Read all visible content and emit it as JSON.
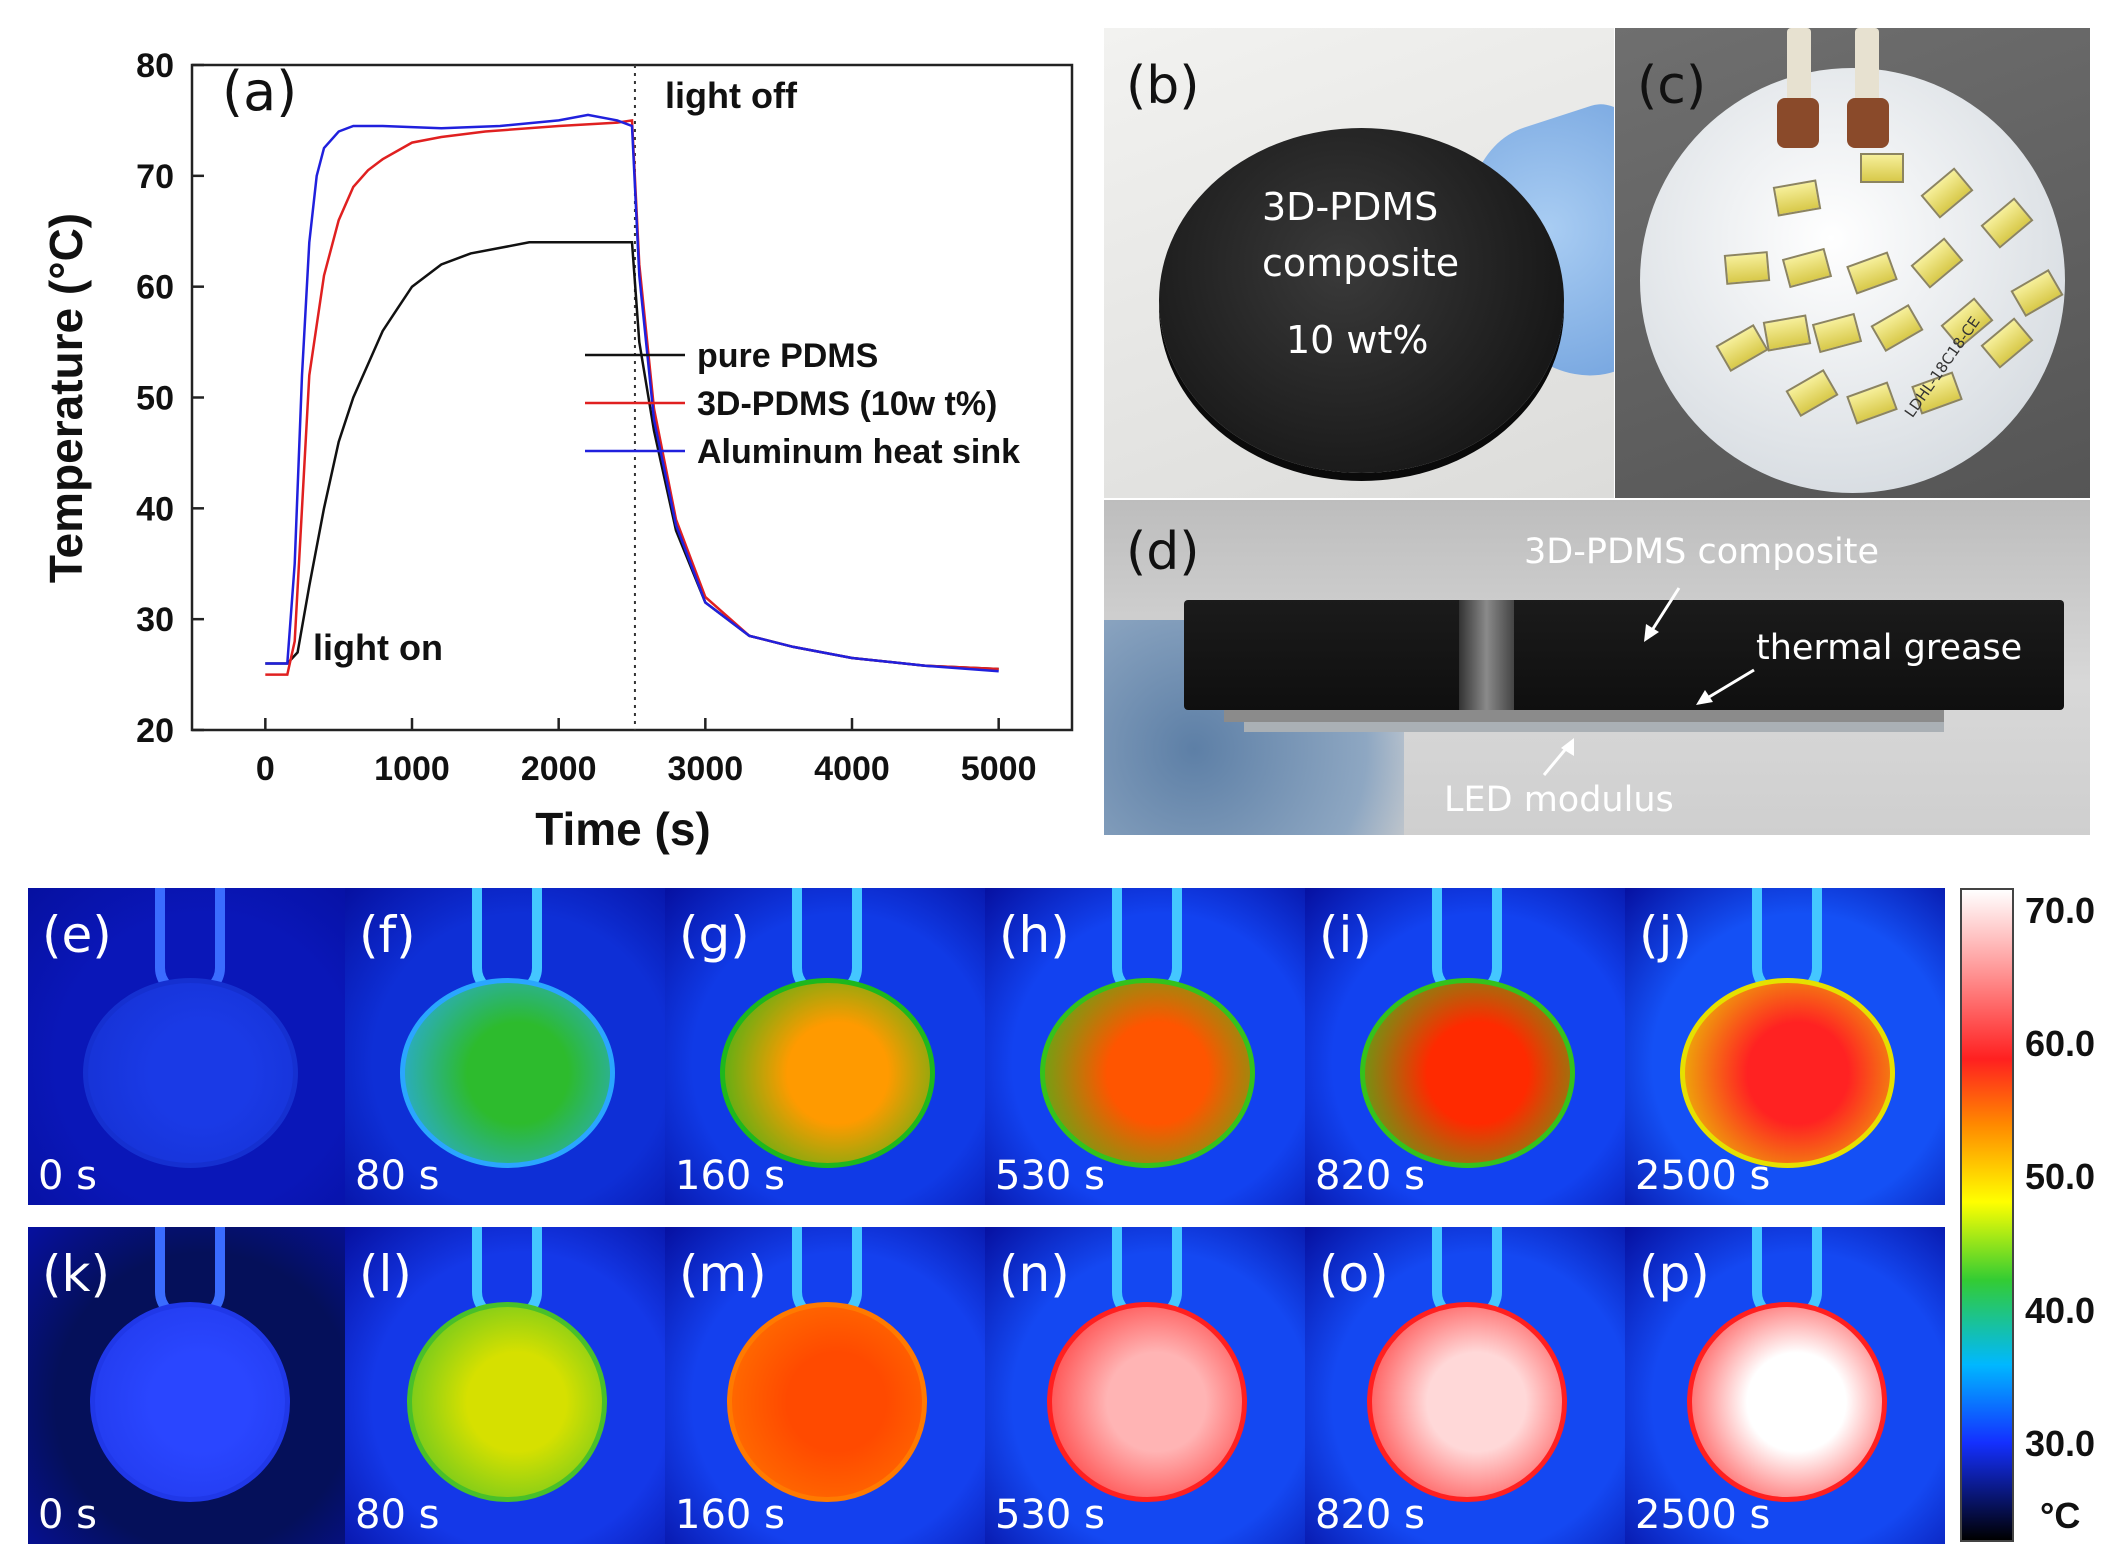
{
  "chart_data": {
    "type": "line",
    "label": "(a)",
    "xlabel": "Time (s)",
    "ylabel": "Temperature (°C)",
    "xlim": [
      -500,
      5500
    ],
    "ylim": [
      20,
      80
    ],
    "xticks": [
      0,
      1000,
      2000,
      3000,
      4000,
      5000
    ],
    "yticks": [
      20,
      30,
      40,
      50,
      60,
      70,
      80
    ],
    "annotations": {
      "light_on": "light on",
      "light_off": "light off",
      "light_off_x": 2520
    },
    "legend_position": "center-right",
    "series": [
      {
        "name": "pure PDMS",
        "color": "#111111",
        "x": [
          0,
          150,
          220,
          300,
          400,
          500,
          600,
          700,
          800,
          900,
          1000,
          1200,
          1400,
          1600,
          1800,
          2000,
          2200,
          2400,
          2500,
          2550,
          2650,
          2800,
          3000,
          3300,
          3600,
          4000,
          4500,
          5000
        ],
        "y": [
          26,
          26,
          27,
          33,
          40,
          46,
          50,
          53,
          56,
          58,
          60,
          62,
          63,
          63.5,
          64,
          64,
          64,
          64,
          64,
          55,
          47,
          38,
          31.5,
          28.5,
          27.5,
          26.5,
          25.8,
          25.5
        ]
      },
      {
        "name": "3D-PDMS (10w t%)",
        "color": "#e02020",
        "x": [
          0,
          150,
          200,
          250,
          300,
          400,
          500,
          600,
          700,
          800,
          1000,
          1200,
          1500,
          2000,
          2400,
          2500,
          2550,
          2650,
          2800,
          3000,
          3300,
          3600,
          4000,
          4500,
          5000
        ],
        "y": [
          25,
          25,
          28,
          40,
          52,
          61,
          66,
          69,
          70.5,
          71.5,
          73,
          73.5,
          74,
          74.5,
          74.8,
          75,
          62,
          49,
          39,
          32,
          28.5,
          27.5,
          26.5,
          25.8,
          25.5
        ]
      },
      {
        "name": "Aluminum heat sink",
        "color": "#2020dd",
        "x": [
          0,
          150,
          200,
          250,
          300,
          350,
          400,
          500,
          600,
          800,
          1200,
          1600,
          2000,
          2200,
          2400,
          2500,
          2550,
          2650,
          2800,
          3000,
          3300,
          3600,
          4000,
          4500,
          5000
        ],
        "y": [
          26,
          26,
          35,
          52,
          64,
          70,
          72.5,
          74,
          74.5,
          74.5,
          74.3,
          74.5,
          75,
          75.5,
          75,
          74.5,
          61,
          48,
          38.5,
          31.5,
          28.5,
          27.5,
          26.5,
          25.8,
          25.3
        ]
      }
    ]
  },
  "panels": {
    "b": {
      "label": "(b)",
      "line1": "3D-PDMS",
      "line2": "composite",
      "line3": "10 wt%"
    },
    "c": {
      "label": "(c)",
      "board_code": "LDHL-18C18-CE"
    },
    "d": {
      "label": "(d)",
      "composite": "3D-PDMS composite",
      "grease": "thermal grease",
      "led": "LED modulus"
    }
  },
  "ir_rows": [
    [
      {
        "label": "(e)",
        "time": "0 s",
        "peak": "#1a3ae6",
        "edge": "#1530d0",
        "bg": "#0a17b8"
      },
      {
        "label": "(f)",
        "time": "80 s",
        "peak": "#2dbb2d",
        "edge": "#2aa6ff",
        "bg": "#0e2fd6"
      },
      {
        "label": "(g)",
        "time": "160 s",
        "peak": "#ff9a00",
        "edge": "#1db81d",
        "bg": "#103ae6"
      },
      {
        "label": "(h)",
        "time": "530 s",
        "peak": "#ff5500",
        "edge": "#34c21c",
        "bg": "#1242f0"
      },
      {
        "label": "(i)",
        "time": "820 s",
        "peak": "#ff2a00",
        "edge": "#34c21c",
        "bg": "#1242f0"
      },
      {
        "label": "(j)",
        "time": "2500 s",
        "peak": "#ff2222",
        "edge": "#e6e000",
        "bg": "#1450f5"
      }
    ],
    [
      {
        "label": "(k)",
        "time": "0 s",
        "peak": "#2a46ff",
        "edge": "#2038e8",
        "bg": "#05105a"
      },
      {
        "label": "(l)",
        "time": "80 s",
        "peak": "#d6e000",
        "edge": "#48c02a",
        "bg": "#1438e8"
      },
      {
        "label": "(m)",
        "time": "160 s",
        "peak": "#ff4a00",
        "edge": "#ff7a00",
        "bg": "#1440ee"
      },
      {
        "label": "(n)",
        "time": "530 s",
        "peak": "#ffb4b4",
        "edge": "#ff2020",
        "bg": "#1448f2"
      },
      {
        "label": "(o)",
        "time": "820 s",
        "peak": "#ffd8d8",
        "edge": "#ff2020",
        "bg": "#1448f2"
      },
      {
        "label": "(p)",
        "time": "2500 s",
        "peak": "#ffffff",
        "edge": "#ff2020",
        "bg": "#1448f2"
      }
    ]
  ],
  "colorbar": {
    "ticks": [
      "70.0",
      "60.0",
      "50.0",
      "40.0",
      "30.0"
    ],
    "unit": "°C"
  }
}
